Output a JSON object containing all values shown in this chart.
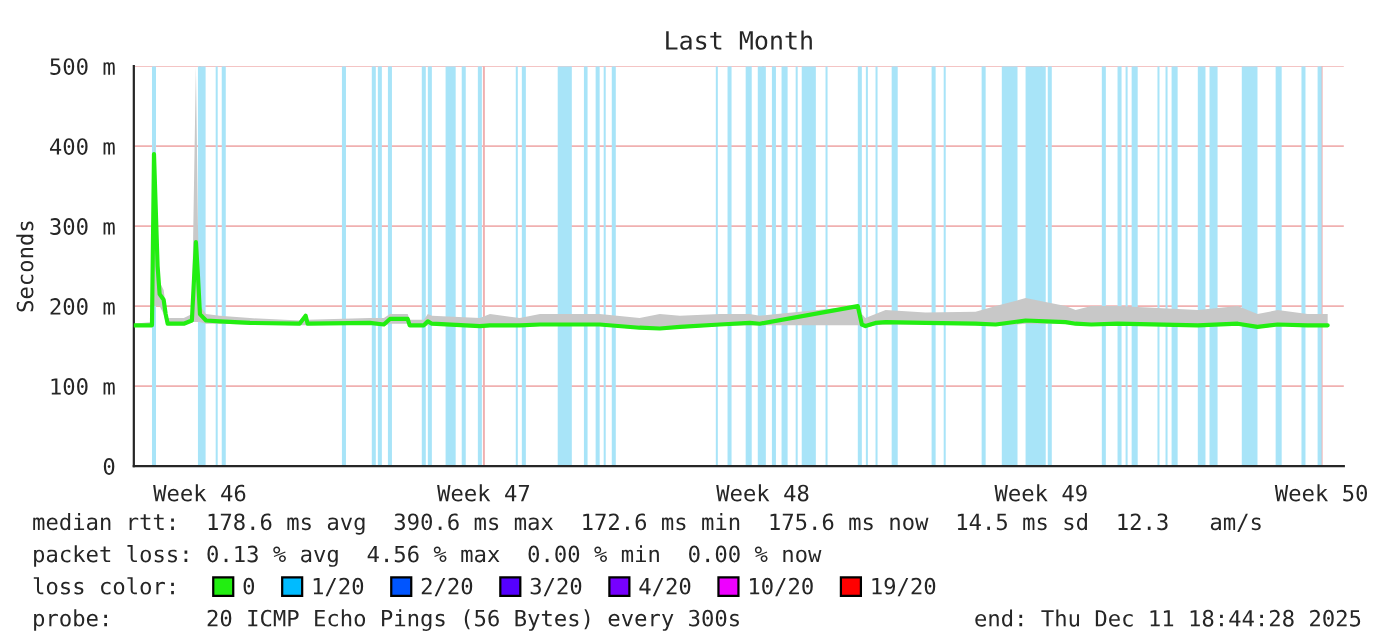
{
  "chart_data": {
    "type": "line",
    "title": "Last Month",
    "ylabel": "Seconds",
    "x": [
      "2025-11-11T18:44",
      "2025-11-12T05:32",
      "2025-11-12T06:44",
      "2025-11-12T08:53",
      "2025-11-12T10:05",
      "2025-11-12T12:29",
      "2025-11-12T13:41",
      "2025-11-12T14:53",
      "2025-11-13T00:29",
      "2025-11-13T05:17",
      "2025-11-13T07:41",
      "2025-11-13T08:53",
      "2025-11-13T10:05",
      "2025-11-13T13:41",
      "2025-11-13T21:51",
      "2025-11-14T15:51",
      "2025-11-15T21:22",
      "2025-11-16T00:58",
      "2025-11-16T02:10",
      "2025-11-17T15:08",
      "2025-11-17T23:32",
      "2025-11-18T03:08",
      "2025-11-18T13:41",
      "2025-11-18T14:53",
      "2025-11-18T23:17",
      "2025-11-19T01:41",
      "2025-11-19T04:05",
      "2025-11-20T08:39",
      "2025-11-20T14:39",
      "2025-11-21T08:25",
      "2025-11-21T20:25",
      "2025-11-23T07:56",
      "2025-11-24T07:41",
      "2025-11-24T19:41",
      "2025-11-25T07:41",
      "2025-11-26T07:27",
      "2025-11-27T01:13",
      "2025-11-27T07:13",
      "2025-11-29T17:32",
      "2025-11-29T19:56",
      "2025-11-29T22:05",
      "2025-11-30T04:05",
      "2025-11-30T10:05",
      "2025-12-01T09:51",
      "2025-12-02T15:37",
      "2025-12-03T03:37",
      "2025-12-03T21:22",
      "2025-12-04T21:08",
      "2025-12-05T03:08",
      "2025-12-05T12:29",
      "2025-12-06T04:05",
      "2025-12-08T03:51",
      "2025-12-09T03:37",
      "2025-12-09T15:22",
      "2025-12-10T03:22",
      "2025-12-10T21:08",
      "2025-12-11T09:08"
    ],
    "series": [
      {
        "name": "0",
        "color": "#22ee11",
        "values": [
          176,
          176,
          390,
          250,
          215,
          208,
          190,
          178,
          178,
          182,
          280,
          238,
          190,
          182,
          181,
          179,
          178,
          188,
          178,
          179,
          177,
          184,
          184,
          176,
          176,
          181,
          178,
          175,
          176,
          176,
          177,
          177,
          173,
          172,
          174,
          177,
          179,
          178,
          200,
          177,
          175,
          179,
          180,
          179,
          178,
          177,
          182,
          180,
          178,
          177,
          178,
          176,
          178,
          174,
          177,
          176,
          176
        ],
        "lower": [
          174,
          174,
          200,
          200,
          200,
          190,
          180,
          176,
          176,
          180,
          180,
          180,
          180,
          178,
          178,
          177,
          176,
          176,
          176,
          177,
          175,
          178,
          178,
          174,
          174,
          176,
          176,
          173,
          174,
          174,
          175,
          175,
          171,
          170,
          172,
          175,
          176,
          176,
          176,
          175,
          173,
          176,
          177,
          177,
          176,
          175,
          178,
          178,
          176,
          175,
          176,
          174,
          176,
          172,
          175,
          174,
          174
        ],
        "upper": [
          178,
          180,
          410,
          300,
          230,
          220,
          200,
          185,
          185,
          190,
          500,
          300,
          200,
          190,
          188,
          185,
          182,
          190,
          183,
          185,
          185,
          190,
          190,
          183,
          183,
          190,
          188,
          185,
          190,
          185,
          190,
          190,
          185,
          190,
          188,
          190,
          190,
          188,
          200,
          190,
          185,
          190,
          195,
          192,
          193,
          200,
          210,
          200,
          195,
          200,
          200,
          195,
          200,
          190,
          195,
          190,
          190
        ]
      },
      {
        "name": "1/20",
        "color": "#00bbff",
        "values": [
          null,
          null,
          null,
          null,
          null,
          null,
          null,
          null,
          null,
          null,
          null,
          null,
          null,
          null,
          null,
          null,
          null,
          null,
          null,
          null,
          null,
          null,
          null,
          null,
          null,
          null,
          null,
          null,
          null,
          null,
          null,
          null,
          null,
          null,
          null,
          null,
          null,
          null,
          null,
          null,
          null,
          null,
          null,
          null,
          null,
          null,
          null,
          null,
          null,
          null,
          null,
          null,
          null,
          null,
          null,
          null,
          null
        ]
      },
      {
        "name": "2/20",
        "color": "#0055ff",
        "values": [
          null,
          null,
          null,
          null,
          null,
          null,
          null,
          null,
          null,
          null,
          null,
          null,
          null,
          null,
          null,
          null,
          null,
          null,
          null,
          null,
          null,
          null,
          null,
          null,
          null,
          null,
          null,
          null,
          null,
          null,
          null,
          null,
          null,
          null,
          null,
          null,
          null,
          null,
          null,
          null,
          null,
          null,
          null,
          null,
          null,
          null,
          null,
          null,
          null,
          null,
          null,
          null,
          null,
          null,
          null,
          null,
          null
        ]
      },
      {
        "name": "3/20",
        "color": "#5500ff",
        "values": [
          null,
          null,
          null,
          null,
          null,
          null,
          null,
          null,
          null,
          null,
          null,
          null,
          null,
          null,
          null,
          null,
          null,
          null,
          null,
          null,
          null,
          null,
          null,
          null,
          null,
          null,
          null,
          null,
          null,
          null,
          null,
          null,
          null,
          null,
          null,
          null,
          null,
          null,
          null,
          null,
          null,
          null,
          null,
          null,
          null,
          null,
          null,
          null,
          null,
          null,
          null,
          null,
          null,
          null,
          null,
          null,
          null
        ]
      },
      {
        "name": "4/20",
        "color": "#7700ff",
        "values": [
          null,
          null,
          null,
          null,
          null,
          null,
          null,
          null,
          null,
          null,
          null,
          null,
          null,
          null,
          null,
          null,
          null,
          null,
          null,
          null,
          null,
          null,
          null,
          null,
          null,
          null,
          null,
          null,
          null,
          null,
          null,
          null,
          null,
          null,
          null,
          null,
          null,
          null,
          null,
          null,
          null,
          null,
          null,
          null,
          null,
          null,
          null,
          null,
          null,
          null,
          null,
          null,
          null,
          null,
          null,
          null,
          null
        ]
      },
      {
        "name": "10/20",
        "color": "#ee00ff",
        "values": [
          null,
          null,
          null,
          null,
          null,
          null,
          null,
          null,
          null,
          null,
          null,
          null,
          null,
          null,
          null,
          null,
          null,
          null,
          null,
          null,
          null,
          null,
          null,
          null,
          null,
          null,
          null,
          null,
          null,
          null,
          null,
          null,
          null,
          null,
          null,
          null,
          null,
          null,
          null,
          null,
          null,
          null,
          null,
          null,
          null,
          null,
          null,
          null,
          null,
          null,
          null,
          null,
          null,
          null,
          null,
          null,
          null
        ]
      },
      {
        "name": "19/20",
        "color": "#ff0000",
        "values": [
          null,
          null,
          null,
          null,
          null,
          null,
          null,
          null,
          null,
          null,
          null,
          null,
          null,
          null,
          null,
          null,
          null,
          null,
          null,
          null,
          null,
          null,
          null,
          null,
          null,
          null,
          null,
          null,
          null,
          null,
          null,
          null,
          null,
          null,
          null,
          null,
          null,
          null,
          null,
          null,
          null,
          null,
          null,
          null,
          null,
          null,
          null,
          null,
          null,
          null,
          null,
          null,
          null,
          null,
          null,
          null,
          null
        ]
      }
    ],
    "legend_title": "loss color:",
    "legend": "bottom",
    "xlim": [
      "2025-11-11T18:44",
      "2025-12-11T18:44"
    ],
    "xticks": [
      {
        "value": "2025-11-13T10:05",
        "label": "Week 46"
      },
      {
        "value": "2025-11-20T11:03",
        "label": "Week 47"
      },
      {
        "value": "2025-11-27T09:08",
        "label": "Week 48"
      },
      {
        "value": "2025-12-04T06:44",
        "label": "Week 49"
      },
      {
        "value": "2025-12-11T05:32",
        "label": "Week 50"
      }
    ],
    "ylim": [
      0,
      500
    ],
    "yticks": [
      0,
      {
        "value": 100,
        "label": "100 m"
      },
      {
        "value": 200,
        "label": "200 m"
      },
      {
        "value": 300,
        "label": "300 m"
      },
      {
        "value": 400,
        "label": "400 m"
      },
      {
        "value": 500,
        "label": "500 m"
      }
    ],
    "grid": true,
    "bands": [
      {
        "axis": "x",
        "from": "2025-11-12T05:32",
        "to": "2025-11-12T07:56",
        "color": "#a8e4f8"
      },
      {
        "axis": "x",
        "from": "2025-11-13T08:53",
        "to": "2025-11-13T13:27",
        "color": "#a8e4f8"
      },
      {
        "axis": "x",
        "from": "2025-11-13T19:27",
        "to": "2025-11-13T20:39",
        "color": "#a8e4f8"
      },
      {
        "axis": "x",
        "from": "2025-11-13T23:03",
        "to": "2025-11-14T01:27",
        "color": "#a8e4f8"
      },
      {
        "axis": "x",
        "from": "2025-11-16T22:34",
        "to": "2025-11-17T00:58",
        "color": "#a8e4f8"
      },
      {
        "axis": "x",
        "from": "2025-11-17T16:20",
        "to": "2025-11-17T18:44",
        "color": "#a8e4f8"
      },
      {
        "axis": "x",
        "from": "2025-11-17T19:56",
        "to": "2025-11-17T22:20",
        "color": "#a8e4f8"
      },
      {
        "axis": "x",
        "from": "2025-11-18T01:56",
        "to": "2025-11-18T04:20",
        "color": "#a8e4f8"
      },
      {
        "axis": "x",
        "from": "2025-11-18T22:05",
        "to": "2025-11-19T00:29",
        "color": "#a8e4f8"
      },
      {
        "axis": "x",
        "from": "2025-11-19T01:41",
        "to": "2025-11-19T04:05",
        "color": "#a8e4f8"
      },
      {
        "axis": "x",
        "from": "2025-11-19T12:15",
        "to": "2025-11-19T18:15",
        "color": "#a8e4f8"
      },
      {
        "axis": "x",
        "from": "2025-11-19T21:51",
        "to": "2025-11-20T00:15",
        "color": "#a8e4f8"
      },
      {
        "axis": "x",
        "from": "2025-11-20T07:27",
        "to": "2025-11-20T09:51",
        "color": "#a8e4f8"
      },
      {
        "axis": "x",
        "from": "2025-11-21T06:01",
        "to": "2025-11-21T07:13",
        "color": "#a8e4f8"
      },
      {
        "axis": "x",
        "from": "2025-11-21T09:37",
        "to": "2025-11-21T12:01",
        "color": "#a8e4f8"
      },
      {
        "axis": "x",
        "from": "2025-11-22T06:58",
        "to": "2025-11-22T15:22",
        "color": "#a8e4f8"
      },
      {
        "axis": "x",
        "from": "2025-11-22T22:34",
        "to": "2025-11-23T00:44",
        "color": "#a8e4f8"
      },
      {
        "axis": "x",
        "from": "2025-11-23T05:32",
        "to": "2025-11-23T07:56",
        "color": "#a8e4f8"
      },
      {
        "axis": "x",
        "from": "2025-11-23T10:20",
        "to": "2025-11-23T11:32",
        "color": "#a8e4f8"
      },
      {
        "axis": "x",
        "from": "2025-11-23T15:08",
        "to": "2025-11-23T17:32",
        "color": "#a8e4f8"
      },
      {
        "axis": "x",
        "from": "2025-11-26T05:03",
        "to": "2025-11-26T06:15",
        "color": "#a8e4f8"
      },
      {
        "axis": "x",
        "from": "2025-11-26T12:01",
        "to": "2025-11-26T14:25",
        "color": "#a8e4f8"
      },
      {
        "axis": "x",
        "from": "2025-11-26T22:49",
        "to": "2025-11-27T02:25",
        "color": "#a8e4f8"
      },
      {
        "axis": "x",
        "from": "2025-11-27T06:01",
        "to": "2025-11-27T10:49",
        "color": "#a8e4f8"
      },
      {
        "axis": "x",
        "from": "2025-11-27T14:25",
        "to": "2025-11-27T16:49",
        "color": "#a8e4f8"
      },
      {
        "axis": "x",
        "from": "2025-11-27T20:10",
        "to": "2025-11-27T23:46",
        "color": "#a8e4f8"
      },
      {
        "axis": "x",
        "from": "2025-11-28T04:34",
        "to": "2025-11-28T05:46",
        "color": "#a8e4f8"
      },
      {
        "axis": "x",
        "from": "2025-11-28T08:10",
        "to": "2025-11-28T16:34",
        "color": "#a8e4f8"
      },
      {
        "axis": "x",
        "from": "2025-11-28T22:20",
        "to": "2025-11-28T23:32",
        "color": "#a8e4f8"
      },
      {
        "axis": "x",
        "from": "2025-11-29T17:32",
        "to": "2025-11-29T19:56",
        "color": "#a8e4f8"
      },
      {
        "axis": "x",
        "from": "2025-11-29T22:20",
        "to": "2025-11-29T23:32",
        "color": "#a8e4f8"
      },
      {
        "axis": "x",
        "from": "2025-11-30T04:05",
        "to": "2025-11-30T05:17",
        "color": "#a8e4f8"
      },
      {
        "axis": "x",
        "from": "2025-11-30T13:41",
        "to": "2025-11-30T17:17",
        "color": "#a8e4f8"
      },
      {
        "axis": "x",
        "from": "2025-12-01T13:27",
        "to": "2025-12-01T15:51",
        "color": "#a8e4f8"
      },
      {
        "axis": "x",
        "from": "2025-12-01T20:39",
        "to": "2025-12-01T21:51",
        "color": "#a8e4f8"
      },
      {
        "axis": "x",
        "from": "2025-12-02T19:13",
        "to": "2025-12-02T21:37",
        "color": "#a8e4f8"
      },
      {
        "axis": "x",
        "from": "2025-12-03T07:13",
        "to": "2025-12-03T16:34",
        "color": "#a8e4f8"
      },
      {
        "axis": "x",
        "from": "2025-12-03T21:22",
        "to": "2025-12-04T09:22",
        "color": "#a8e4f8"
      },
      {
        "axis": "x",
        "from": "2025-12-04T10:34",
        "to": "2025-12-04T12:58",
        "color": "#a8e4f8"
      },
      {
        "axis": "x",
        "from": "2025-12-05T18:44",
        "to": "2025-12-05T21:08",
        "color": "#a8e4f8"
      },
      {
        "axis": "x",
        "from": "2025-12-06T04:05",
        "to": "2025-12-06T06:29",
        "color": "#a8e4f8"
      },
      {
        "axis": "x",
        "from": "2025-12-06T08:53",
        "to": "2025-12-06T10:05",
        "color": "#a8e4f8"
      },
      {
        "axis": "x",
        "from": "2025-12-06T12:29",
        "to": "2025-12-06T16:05",
        "color": "#a8e4f8"
      },
      {
        "axis": "x",
        "from": "2025-12-07T03:51",
        "to": "2025-12-07T05:03",
        "color": "#a8e4f8"
      },
      {
        "axis": "x",
        "from": "2025-12-07T08:39",
        "to": "2025-12-07T09:51",
        "color": "#a8e4f8"
      },
      {
        "axis": "x",
        "from": "2025-12-07T12:15",
        "to": "2025-12-07T15:51",
        "color": "#a8e4f8"
      },
      {
        "axis": "x",
        "from": "2025-12-08T03:51",
        "to": "2025-12-08T08:25",
        "color": "#a8e4f8"
      },
      {
        "axis": "x",
        "from": "2025-12-08T10:49",
        "to": "2025-12-08T15:37",
        "color": "#a8e4f8"
      },
      {
        "axis": "x",
        "from": "2025-12-09T06:01",
        "to": "2025-12-09T15:22",
        "color": "#a8e4f8"
      },
      {
        "axis": "x",
        "from": "2025-12-10T02:10",
        "to": "2025-12-10T05:46",
        "color": "#a8e4f8"
      },
      {
        "axis": "x",
        "from": "2025-12-10T17:32",
        "to": "2025-12-10T19:56",
        "color": "#a8e4f8"
      },
      {
        "axis": "x",
        "from": "2025-12-11T03:08",
        "to": "2025-12-11T05:32",
        "color": "#a8e4f8"
      }
    ],
    "annotations": [
      "median rtt:  178.6 ms avg  390.6 ms max  172.6 ms min  175.6 ms now  14.5 ms sd  12.3   am/s",
      "packet loss: 0.13 % avg  4.56 % max  0.00 % min  0.00 % now",
      "probe:       20 ICMP Echo Pings (56 Bytes) every 300s",
      "end: Thu Dec 11 18:44:28 2025"
    ]
  }
}
